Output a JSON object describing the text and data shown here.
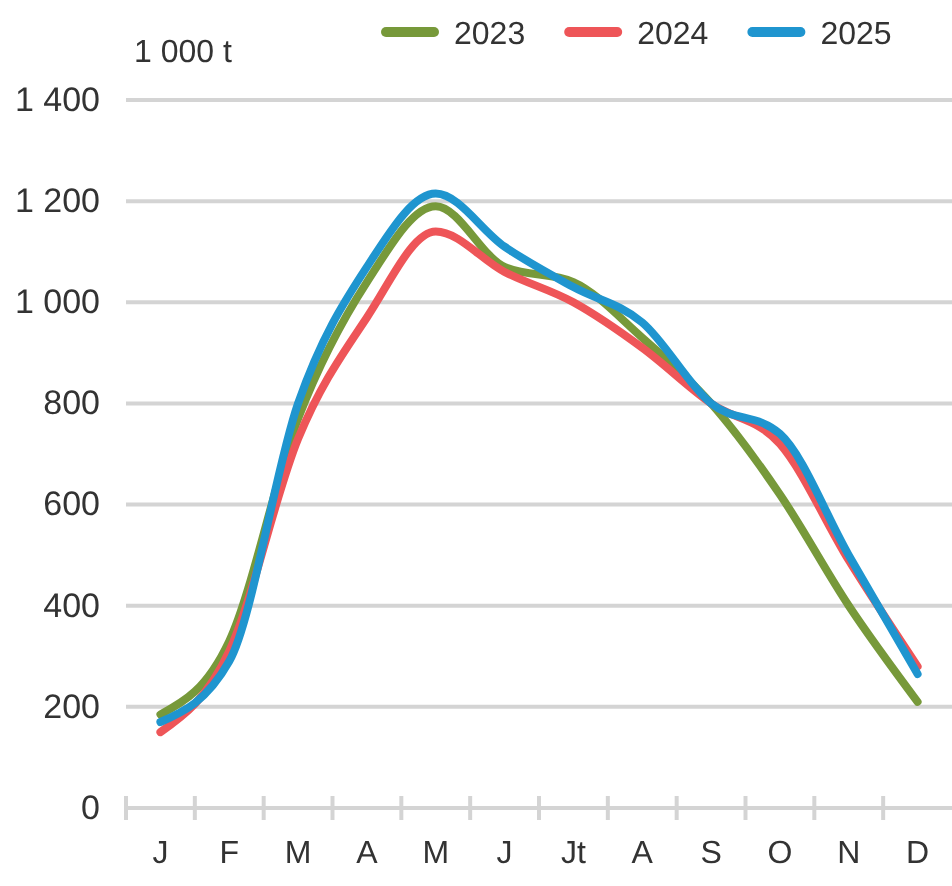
{
  "chart_data": {
    "type": "line",
    "ylabel": "1 000 t",
    "categories": [
      "J",
      "F",
      "M",
      "A",
      "M",
      "J",
      "Jt",
      "A",
      "S",
      "O",
      "N",
      "D"
    ],
    "series": [
      {
        "name": "2023",
        "color": "#77993a",
        "values": [
          185,
          330,
          770,
          1040,
          1190,
          1070,
          1040,
          930,
          800,
          620,
          400,
          210
        ]
      },
      {
        "name": "2024",
        "color": "#ee5558",
        "values": [
          150,
          310,
          730,
          970,
          1140,
          1060,
          1000,
          910,
          800,
          720,
          490,
          280
        ]
      },
      {
        "name": "2025",
        "color": "#1f95cf",
        "values": [
          170,
          290,
          800,
          1070,
          1215,
          1110,
          1030,
          960,
          800,
          740,
          500,
          265
        ]
      }
    ],
    "ylim": [
      0,
      1400
    ],
    "yticks": [
      0,
      200,
      400,
      600,
      800,
      {
        "value": 1000,
        "label": "1 000"
      },
      {
        "value": 1200,
        "label": "1 200"
      },
      {
        "value": 1400,
        "label": "1 400"
      }
    ],
    "grid": "y",
    "legend": "top right",
    "marker": "none",
    "line_style": "solid"
  }
}
